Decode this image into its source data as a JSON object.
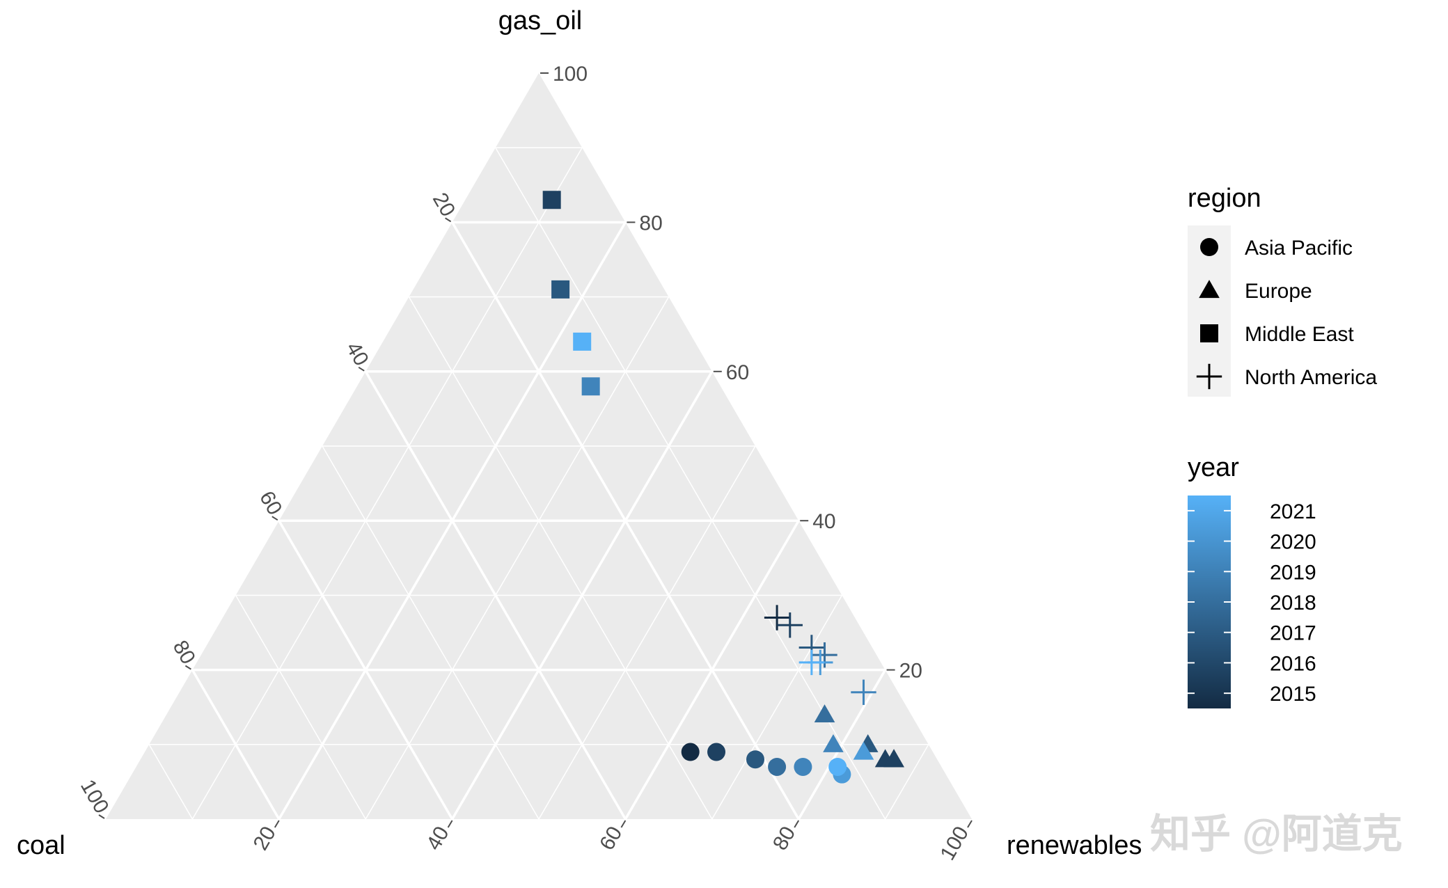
{
  "chart_data": {
    "type": "ternary",
    "axes": {
      "top": "gas_oil",
      "left": "coal",
      "right": "renewables"
    },
    "range": [
      0,
      100
    ],
    "ticks": [
      "20",
      "40",
      "60",
      "80",
      "100"
    ],
    "grid": true,
    "colors": {
      "panel": "#ebebeb",
      "grid": "#ffffff",
      "year_low": "#132b43",
      "year_high": "#56b1f7"
    },
    "legend_region": {
      "title": "region",
      "entries": [
        {
          "label": "Asia Pacific",
          "shape": "circle"
        },
        {
          "label": "Europe",
          "shape": "triangle"
        },
        {
          "label": "Middle East",
          "shape": "square"
        },
        {
          "label": "North America",
          "shape": "plus"
        }
      ]
    },
    "legend_year": {
      "title": "year",
      "min": 2015,
      "max": 2021,
      "labels": [
        "2021",
        "2020",
        "2019",
        "2018",
        "2017",
        "2016",
        "2015"
      ]
    },
    "points": [
      {
        "region": "Asia Pacific",
        "year": 2015,
        "coal": 28,
        "gas_oil": 9,
        "renewables": 63
      },
      {
        "region": "Asia Pacific",
        "year": 2016,
        "coal": 25,
        "gas_oil": 9,
        "renewables": 66
      },
      {
        "region": "Asia Pacific",
        "year": 2017,
        "coal": 21,
        "gas_oil": 8,
        "renewables": 71
      },
      {
        "region": "Asia Pacific",
        "year": 2018,
        "coal": 19,
        "gas_oil": 7,
        "renewables": 74
      },
      {
        "region": "Asia Pacific",
        "year": 2019,
        "coal": 16,
        "gas_oil": 7,
        "renewables": 77
      },
      {
        "region": "Asia Pacific",
        "year": 2020,
        "coal": 12,
        "gas_oil": 6,
        "renewables": 82
      },
      {
        "region": "Asia Pacific",
        "year": 2021,
        "coal": 12,
        "gas_oil": 7,
        "renewables": 81
      },
      {
        "region": "Europe",
        "year": 2015,
        "coal": 5,
        "gas_oil": 8,
        "renewables": 87
      },
      {
        "region": "Europe",
        "year": 2016,
        "coal": 6,
        "gas_oil": 8,
        "renewables": 86
      },
      {
        "region": "Europe",
        "year": 2017,
        "coal": 7,
        "gas_oil": 10,
        "renewables": 83
      },
      {
        "region": "Europe",
        "year": 2018,
        "coal": 10,
        "gas_oil": 14,
        "renewables": 76
      },
      {
        "region": "Europe",
        "year": 2019,
        "coal": 11,
        "gas_oil": 10,
        "renewables": 79
      },
      {
        "region": "Europe",
        "year": 2020,
        "coal": 8,
        "gas_oil": 9,
        "renewables": 83
      },
      {
        "region": "Europe",
        "year": 2016,
        "coal": 5,
        "gas_oil": 8,
        "renewables": 87
      },
      {
        "region": "Middle East",
        "year": 2016,
        "coal": 7,
        "gas_oil": 83,
        "renewables": 10
      },
      {
        "region": "Middle East",
        "year": 2017,
        "coal": 12,
        "gas_oil": 71,
        "renewables": 17
      },
      {
        "region": "Middle East",
        "year": 2019,
        "coal": 15,
        "gas_oil": 58,
        "renewables": 27
      },
      {
        "region": "Middle East",
        "year": 2021,
        "coal": 13,
        "gas_oil": 64,
        "renewables": 23
      },
      {
        "region": "North America",
        "year": 2015,
        "coal": 9,
        "gas_oil": 27,
        "renewables": 64
      },
      {
        "region": "North America",
        "year": 2016,
        "coal": 8,
        "gas_oil": 26,
        "renewables": 66
      },
      {
        "region": "North America",
        "year": 2017,
        "coal": 7,
        "gas_oil": 23,
        "renewables": 70
      },
      {
        "region": "North America",
        "year": 2018,
        "coal": 6,
        "gas_oil": 22,
        "renewables": 72
      },
      {
        "region": "North America",
        "year": 2020,
        "coal": 7,
        "gas_oil": 21,
        "renewables": 72
      },
      {
        "region": "North America",
        "year": 2021,
        "coal": 8,
        "gas_oil": 21,
        "renewables": 71
      },
      {
        "region": "North America",
        "year": 2019,
        "coal": 4,
        "gas_oil": 17,
        "renewables": 79
      }
    ]
  },
  "watermark": "知乎 @阿道克"
}
